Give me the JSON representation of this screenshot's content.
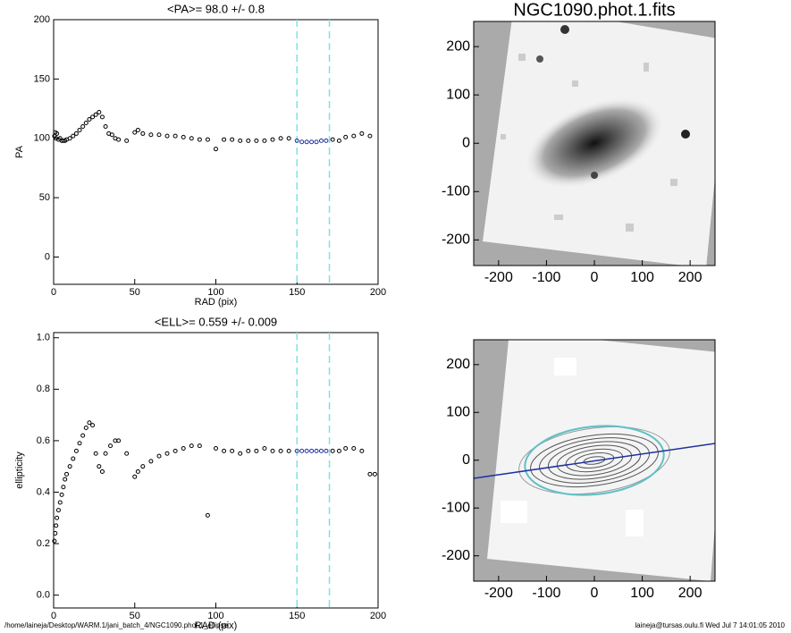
{
  "chart_data": [
    {
      "type": "scatter",
      "title": "<PA>=  98.0 +/-   0.8",
      "xlabel": "RAD (pix)",
      "ylabel": "PA",
      "xlim": [
        0,
        200
      ],
      "ylim": [
        -23,
        200
      ],
      "xticks": [
        0,
        50,
        100,
        150,
        200
      ],
      "yticks": [
        0,
        50,
        100,
        150,
        200
      ],
      "vlines": [
        150,
        170
      ],
      "vline_color": "#7fe0e8",
      "series": [
        {
          "color": "#000000",
          "x": [
            0.5,
            1,
            1.5,
            2,
            3,
            4,
            5,
            6,
            7,
            8,
            10,
            12,
            14,
            16,
            18,
            20,
            22,
            24,
            26,
            28,
            30,
            32,
            34,
            36,
            38,
            40,
            45,
            50,
            52,
            55,
            60,
            65,
            70,
            75,
            80,
            85,
            90,
            95,
            100,
            105,
            110,
            115,
            120,
            125,
            130,
            135,
            140,
            145
          ],
          "values": [
            102,
            105,
            100,
            104,
            99,
            100,
            98,
            98,
            98,
            99,
            100,
            102,
            104,
            107,
            110,
            113,
            116,
            118,
            120,
            122,
            118,
            110,
            104,
            103,
            100,
            99,
            98,
            105,
            107,
            104,
            103,
            103,
            102,
            102,
            101,
            100,
            99,
            99,
            91,
            99,
            99,
            98,
            98,
            98,
            98,
            99,
            100,
            100
          ]
        },
        {
          "color": "#2030a0",
          "x": [
            150,
            153,
            156,
            159,
            162,
            165,
            168
          ],
          "values": [
            98,
            97,
            97,
            97,
            97,
            98,
            98
          ]
        },
        {
          "color": "#000000",
          "x": [
            172,
            176,
            180,
            185,
            190,
            195
          ],
          "values": [
            99,
            98,
            101,
            102,
            104,
            102
          ]
        }
      ]
    },
    {
      "type": "scatter",
      "title": "<ELL>= 0.559 +/-  0.009",
      "xlabel": "RAD (pix)",
      "ylabel": "ellipticity",
      "xlim": [
        0,
        200
      ],
      "ylim": [
        -0.05,
        1.02
      ],
      "xticks": [
        0,
        50,
        100,
        150,
        200
      ],
      "yticks": [
        {
          "value": 0,
          "label": "0.0"
        },
        0.2,
        0.4,
        0.6,
        0.8,
        {
          "value": 1,
          "label": "1.0"
        }
      ],
      "vlines": [
        150,
        170
      ],
      "vline_color": "#7fe0e8",
      "series": [
        {
          "color": "#000000",
          "x": [
            0.5,
            1,
            1.5,
            2,
            3,
            4,
            5,
            6,
            7,
            8,
            10,
            12,
            14,
            16,
            18,
            20,
            22,
            24,
            26,
            28,
            30,
            32,
            35,
            38,
            40,
            45,
            50,
            52,
            55,
            60,
            65,
            70,
            75,
            80,
            85,
            90,
            95,
            100,
            105,
            110,
            115,
            120,
            125,
            130,
            135,
            140,
            145
          ],
          "values": [
            0.21,
            0.24,
            0.27,
            0.3,
            0.33,
            0.36,
            0.39,
            0.42,
            0.45,
            0.47,
            0.5,
            0.53,
            0.56,
            0.59,
            0.62,
            0.65,
            0.67,
            0.66,
            0.55,
            0.5,
            0.48,
            0.55,
            0.58,
            0.6,
            0.6,
            0.55,
            0.46,
            0.48,
            0.5,
            0.52,
            0.54,
            0.55,
            0.56,
            0.57,
            0.58,
            0.58,
            0.31,
            0.57,
            0.56,
            0.56,
            0.55,
            0.56,
            0.56,
            0.57,
            0.56,
            0.56,
            0.56
          ]
        },
        {
          "color": "#2030a0",
          "x": [
            150,
            153,
            156,
            159,
            162,
            165,
            168
          ],
          "values": [
            0.56,
            0.56,
            0.56,
            0.56,
            0.56,
            0.56,
            0.56
          ]
        },
        {
          "color": "#000000",
          "x": [
            172,
            176,
            180,
            185,
            190,
            195,
            198
          ],
          "values": [
            0.56,
            0.56,
            0.57,
            0.57,
            0.56,
            0.47,
            0.47
          ]
        }
      ]
    },
    {
      "type": "image",
      "title": "NGC1090.phot.1.fits",
      "xlim": [
        -252,
        252
      ],
      "ylim": [
        -253,
        252
      ],
      "xticks": [
        -200,
        -100,
        0,
        100,
        200
      ],
      "yticks": [
        -200,
        -100,
        0,
        100,
        200
      ]
    },
    {
      "type": "contour",
      "xlim": [
        -252,
        252
      ],
      "ylim": [
        -253,
        252
      ],
      "xticks": [
        -200,
        -100,
        0,
        100,
        200
      ],
      "yticks": [
        -200,
        -100,
        0,
        100,
        200
      ]
    }
  ],
  "footer": {
    "left": "/home/laineja/Desktop/WARM.1/jani_batch_4/NGC1090.phot.1_ellipse",
    "right": "laineja@tursas.oulu.fi  Wed Jul  7 14:01:05 2010"
  }
}
